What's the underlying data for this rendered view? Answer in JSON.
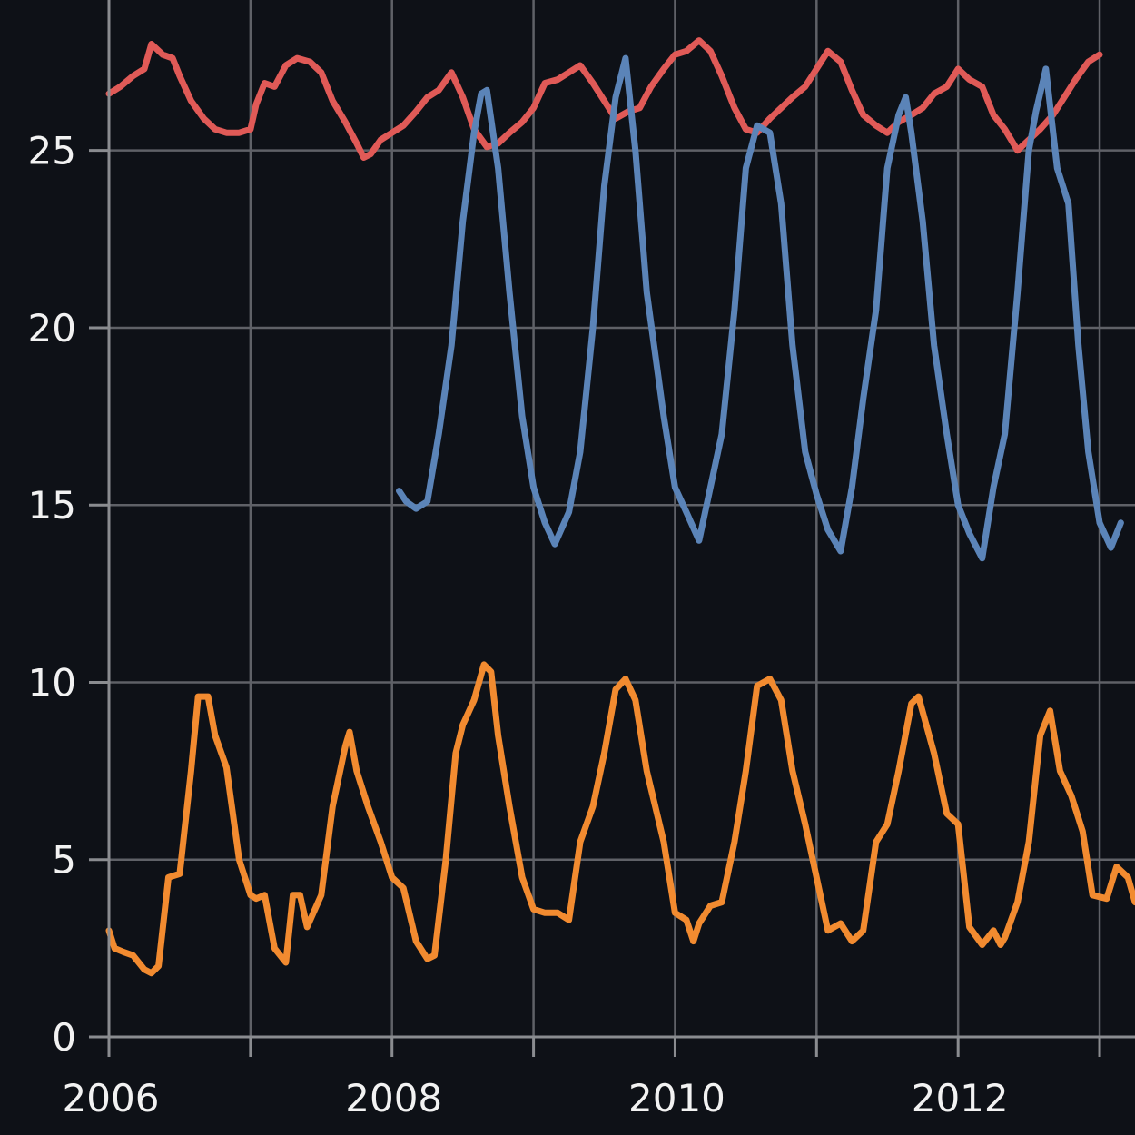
{
  "chart_data": {
    "type": "line",
    "title": "",
    "xlabel": "",
    "ylabel": "",
    "xlim": [
      2006.0,
      2013.25
    ],
    "ylim": [
      0,
      28.5
    ],
    "x_ticks": [
      2006,
      2007,
      2008,
      2009,
      2010,
      2011,
      2012,
      2013
    ],
    "x_tick_labels": [
      "2006",
      "",
      "2008",
      "",
      "2010",
      "",
      "2012",
      ""
    ],
    "y_ticks": [
      0,
      5,
      10,
      15,
      20,
      25
    ],
    "y_tick_labels": [
      "0",
      "5",
      "10",
      "15",
      "20",
      "25"
    ],
    "grid": true,
    "legend": "none",
    "series": [
      {
        "color": "#e05a57",
        "points": [
          [
            2006.0,
            26.6
          ],
          [
            2006.08,
            26.8
          ],
          [
            2006.17,
            27.1
          ],
          [
            2006.25,
            27.3
          ],
          [
            2006.3,
            28.0
          ],
          [
            2006.38,
            27.7
          ],
          [
            2006.45,
            27.6
          ],
          [
            2006.5,
            27.1
          ],
          [
            2006.58,
            26.4
          ],
          [
            2006.67,
            25.9
          ],
          [
            2006.75,
            25.6
          ],
          [
            2006.83,
            25.5
          ],
          [
            2006.92,
            25.5
          ],
          [
            2007.0,
            25.6
          ],
          [
            2007.04,
            26.3
          ],
          [
            2007.1,
            26.9
          ],
          [
            2007.17,
            26.8
          ],
          [
            2007.25,
            27.4
          ],
          [
            2007.33,
            27.6
          ],
          [
            2007.42,
            27.5
          ],
          [
            2007.5,
            27.2
          ],
          [
            2007.58,
            26.4
          ],
          [
            2007.67,
            25.8
          ],
          [
            2007.75,
            25.2
          ],
          [
            2007.8,
            24.8
          ],
          [
            2007.85,
            24.9
          ],
          [
            2007.92,
            25.3
          ],
          [
            2008.0,
            25.5
          ],
          [
            2008.08,
            25.7
          ],
          [
            2008.17,
            26.1
          ],
          [
            2008.25,
            26.5
          ],
          [
            2008.33,
            26.7
          ],
          [
            2008.42,
            27.2
          ],
          [
            2008.5,
            26.5
          ],
          [
            2008.58,
            25.6
          ],
          [
            2008.67,
            25.1
          ],
          [
            2008.75,
            25.2
          ],
          [
            2008.83,
            25.5
          ],
          [
            2008.92,
            25.8
          ],
          [
            2009.0,
            26.2
          ],
          [
            2009.08,
            26.9
          ],
          [
            2009.17,
            27.0
          ],
          [
            2009.25,
            27.2
          ],
          [
            2009.33,
            27.4
          ],
          [
            2009.42,
            26.9
          ],
          [
            2009.5,
            26.4
          ],
          [
            2009.58,
            25.9
          ],
          [
            2009.67,
            26.1
          ],
          [
            2009.75,
            26.2
          ],
          [
            2009.83,
            26.8
          ],
          [
            2009.92,
            27.3
          ],
          [
            2010.0,
            27.7
          ],
          [
            2010.08,
            27.8
          ],
          [
            2010.17,
            28.1
          ],
          [
            2010.25,
            27.8
          ],
          [
            2010.33,
            27.1
          ],
          [
            2010.42,
            26.2
          ],
          [
            2010.5,
            25.6
          ],
          [
            2010.58,
            25.5
          ],
          [
            2010.67,
            25.9
          ],
          [
            2010.75,
            26.2
          ],
          [
            2010.83,
            26.5
          ],
          [
            2010.92,
            26.8
          ],
          [
            2011.0,
            27.3
          ],
          [
            2011.08,
            27.8
          ],
          [
            2011.17,
            27.5
          ],
          [
            2011.25,
            26.7
          ],
          [
            2011.33,
            26.0
          ],
          [
            2011.42,
            25.7
          ],
          [
            2011.5,
            25.5
          ],
          [
            2011.58,
            25.8
          ],
          [
            2011.67,
            26.0
          ],
          [
            2011.75,
            26.2
          ],
          [
            2011.83,
            26.6
          ],
          [
            2011.92,
            26.8
          ],
          [
            2012.0,
            27.3
          ],
          [
            2012.08,
            27.0
          ],
          [
            2012.17,
            26.8
          ],
          [
            2012.25,
            26.0
          ],
          [
            2012.33,
            25.6
          ],
          [
            2012.42,
            25.0
          ],
          [
            2012.5,
            25.3
          ],
          [
            2012.58,
            25.6
          ],
          [
            2012.67,
            26.0
          ],
          [
            2012.75,
            26.5
          ],
          [
            2012.83,
            27.0
          ],
          [
            2012.92,
            27.5
          ],
          [
            2013.0,
            27.7
          ]
        ]
      },
      {
        "color": "#5b84b8",
        "points": [
          [
            2008.05,
            15.4
          ],
          [
            2008.1,
            15.1
          ],
          [
            2008.17,
            14.9
          ],
          [
            2008.25,
            15.1
          ],
          [
            2008.33,
            17.0
          ],
          [
            2008.42,
            19.5
          ],
          [
            2008.5,
            23.0
          ],
          [
            2008.58,
            25.5
          ],
          [
            2008.63,
            26.6
          ],
          [
            2008.67,
            26.7
          ],
          [
            2008.75,
            24.5
          ],
          [
            2008.83,
            21.0
          ],
          [
            2008.92,
            17.5
          ],
          [
            2009.0,
            15.5
          ],
          [
            2009.08,
            14.5
          ],
          [
            2009.15,
            13.9
          ],
          [
            2009.25,
            14.8
          ],
          [
            2009.33,
            16.5
          ],
          [
            2009.42,
            20.0
          ],
          [
            2009.5,
            24.0
          ],
          [
            2009.58,
            26.5
          ],
          [
            2009.65,
            27.6
          ],
          [
            2009.72,
            25.0
          ],
          [
            2009.8,
            21.0
          ],
          [
            2009.92,
            17.5
          ],
          [
            2010.0,
            15.5
          ],
          [
            2010.08,
            14.8
          ],
          [
            2010.17,
            14.0
          ],
          [
            2010.25,
            15.5
          ],
          [
            2010.33,
            17.0
          ],
          [
            2010.42,
            20.5
          ],
          [
            2010.5,
            24.5
          ],
          [
            2010.58,
            25.7
          ],
          [
            2010.67,
            25.5
          ],
          [
            2010.75,
            23.5
          ],
          [
            2010.83,
            19.5
          ],
          [
            2010.92,
            16.5
          ],
          [
            2011.0,
            15.3
          ],
          [
            2011.08,
            14.3
          ],
          [
            2011.17,
            13.7
          ],
          [
            2011.25,
            15.5
          ],
          [
            2011.33,
            18.0
          ],
          [
            2011.42,
            20.5
          ],
          [
            2011.5,
            24.5
          ],
          [
            2011.58,
            26.0
          ],
          [
            2011.63,
            26.5
          ],
          [
            2011.67,
            25.5
          ],
          [
            2011.75,
            23.0
          ],
          [
            2011.83,
            19.5
          ],
          [
            2011.92,
            17.0
          ],
          [
            2012.0,
            15.0
          ],
          [
            2012.08,
            14.2
          ],
          [
            2012.17,
            13.5
          ],
          [
            2012.25,
            15.5
          ],
          [
            2012.33,
            17.0
          ],
          [
            2012.42,
            21.0
          ],
          [
            2012.5,
            25.0
          ],
          [
            2012.55,
            26.1
          ],
          [
            2012.62,
            27.3
          ],
          [
            2012.7,
            24.5
          ],
          [
            2012.78,
            23.5
          ],
          [
            2012.85,
            19.5
          ],
          [
            2012.92,
            16.5
          ],
          [
            2013.0,
            14.5
          ],
          [
            2013.08,
            13.8
          ],
          [
            2013.15,
            14.5
          ]
        ]
      },
      {
        "color": "#f28b30",
        "points": [
          [
            2006.0,
            3.0
          ],
          [
            2006.04,
            2.5
          ],
          [
            2006.1,
            2.4
          ],
          [
            2006.17,
            2.3
          ],
          [
            2006.25,
            1.9
          ],
          [
            2006.3,
            1.8
          ],
          [
            2006.35,
            2.0
          ],
          [
            2006.42,
            4.5
          ],
          [
            2006.5,
            4.6
          ],
          [
            2006.58,
            7.5
          ],
          [
            2006.63,
            9.6
          ],
          [
            2006.7,
            9.6
          ],
          [
            2006.75,
            8.5
          ],
          [
            2006.83,
            7.6
          ],
          [
            2006.92,
            5.0
          ],
          [
            2007.0,
            4.0
          ],
          [
            2007.04,
            3.9
          ],
          [
            2007.1,
            4.0
          ],
          [
            2007.17,
            2.5
          ],
          [
            2007.25,
            2.1
          ],
          [
            2007.3,
            4.0
          ],
          [
            2007.35,
            4.0
          ],
          [
            2007.4,
            3.1
          ],
          [
            2007.5,
            4.0
          ],
          [
            2007.58,
            6.5
          ],
          [
            2007.67,
            8.2
          ],
          [
            2007.7,
            8.6
          ],
          [
            2007.75,
            7.5
          ],
          [
            2007.83,
            6.5
          ],
          [
            2007.92,
            5.5
          ],
          [
            2008.0,
            4.5
          ],
          [
            2008.08,
            4.2
          ],
          [
            2008.17,
            2.7
          ],
          [
            2008.25,
            2.2
          ],
          [
            2008.3,
            2.3
          ],
          [
            2008.38,
            5.0
          ],
          [
            2008.45,
            8.0
          ],
          [
            2008.5,
            8.8
          ],
          [
            2008.58,
            9.5
          ],
          [
            2008.65,
            10.5
          ],
          [
            2008.7,
            10.3
          ],
          [
            2008.75,
            8.5
          ],
          [
            2008.83,
            6.5
          ],
          [
            2008.92,
            4.5
          ],
          [
            2009.0,
            3.6
          ],
          [
            2009.08,
            3.5
          ],
          [
            2009.17,
            3.5
          ],
          [
            2009.25,
            3.3
          ],
          [
            2009.33,
            5.5
          ],
          [
            2009.42,
            6.5
          ],
          [
            2009.5,
            8.0
          ],
          [
            2009.58,
            9.8
          ],
          [
            2009.65,
            10.1
          ],
          [
            2009.72,
            9.5
          ],
          [
            2009.8,
            7.5
          ],
          [
            2009.92,
            5.5
          ],
          [
            2010.0,
            3.5
          ],
          [
            2010.08,
            3.3
          ],
          [
            2010.13,
            2.7
          ],
          [
            2010.17,
            3.2
          ],
          [
            2010.25,
            3.7
          ],
          [
            2010.33,
            3.8
          ],
          [
            2010.42,
            5.5
          ],
          [
            2010.5,
            7.5
          ],
          [
            2010.58,
            9.9
          ],
          [
            2010.67,
            10.1
          ],
          [
            2010.75,
            9.5
          ],
          [
            2010.83,
            7.5
          ],
          [
            2010.92,
            6.0
          ],
          [
            2011.0,
            4.5
          ],
          [
            2011.08,
            3.0
          ],
          [
            2011.17,
            3.2
          ],
          [
            2011.25,
            2.7
          ],
          [
            2011.33,
            3.0
          ],
          [
            2011.42,
            5.5
          ],
          [
            2011.5,
            6.0
          ],
          [
            2011.58,
            7.5
          ],
          [
            2011.67,
            9.4
          ],
          [
            2011.72,
            9.6
          ],
          [
            2011.83,
            8.0
          ],
          [
            2011.92,
            6.3
          ],
          [
            2012.0,
            6.0
          ],
          [
            2012.08,
            3.1
          ],
          [
            2012.17,
            2.6
          ],
          [
            2012.25,
            3.0
          ],
          [
            2012.3,
            2.6
          ],
          [
            2012.33,
            2.8
          ],
          [
            2012.42,
            3.8
          ],
          [
            2012.5,
            5.5
          ],
          [
            2012.58,
            8.5
          ],
          [
            2012.65,
            9.2
          ],
          [
            2012.72,
            7.5
          ],
          [
            2012.8,
            6.8
          ],
          [
            2012.88,
            5.8
          ],
          [
            2012.95,
            4.0
          ],
          [
            2013.05,
            3.9
          ],
          [
            2013.12,
            4.8
          ],
          [
            2013.2,
            4.5
          ],
          [
            2013.25,
            3.8
          ]
        ]
      }
    ]
  }
}
